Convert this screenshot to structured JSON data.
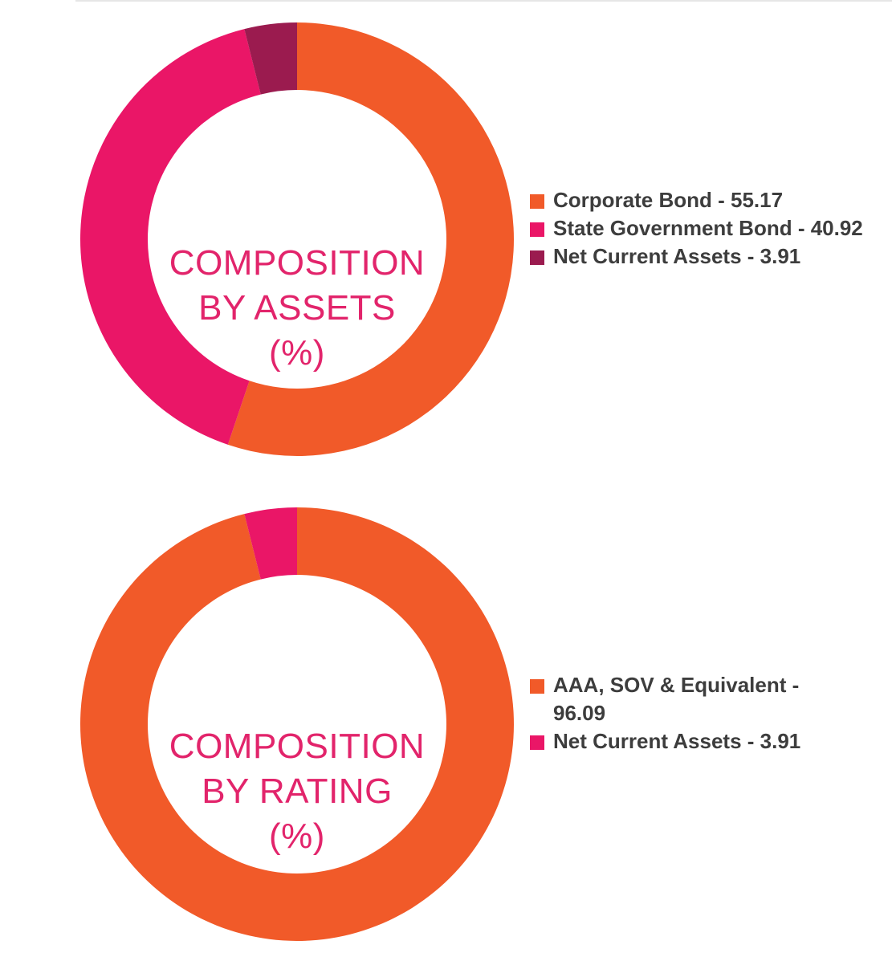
{
  "chart_data": [
    {
      "type": "pie",
      "donut": true,
      "title": "COMPOSITION BY ASSETS (%)",
      "title_lines": [
        "COMPOSITION",
        "BY ASSETS",
        "(%)"
      ],
      "legend_position": "right",
      "slices": [
        {
          "label": "Corporate Bond - 55.17",
          "name": "Corporate Bond",
          "value": 55.17,
          "color": "#f15a29"
        },
        {
          "label": "State Government Bond - 40.92",
          "name": "State Government Bond",
          "value": 40.92,
          "color": "#ea1667"
        },
        {
          "label": "Net Current Assets - 3.91",
          "name": "Net Current Assets",
          "value": 3.91,
          "color": "#9b1b4f"
        }
      ]
    },
    {
      "type": "pie",
      "donut": true,
      "title": "COMPOSITION BY RATING (%)",
      "title_lines": [
        "COMPOSITION",
        "BY RATING",
        "(%)"
      ],
      "legend_position": "right",
      "slices": [
        {
          "label": "AAA, SOV & Equivalent - 96.09",
          "name": "AAA, SOV & Equivalent",
          "value": 96.09,
          "color": "#f15a29"
        },
        {
          "label": "Net Current Assets - 3.91",
          "name": "Net Current Assets",
          "value": 3.91,
          "color": "#ea1667"
        }
      ]
    }
  ]
}
